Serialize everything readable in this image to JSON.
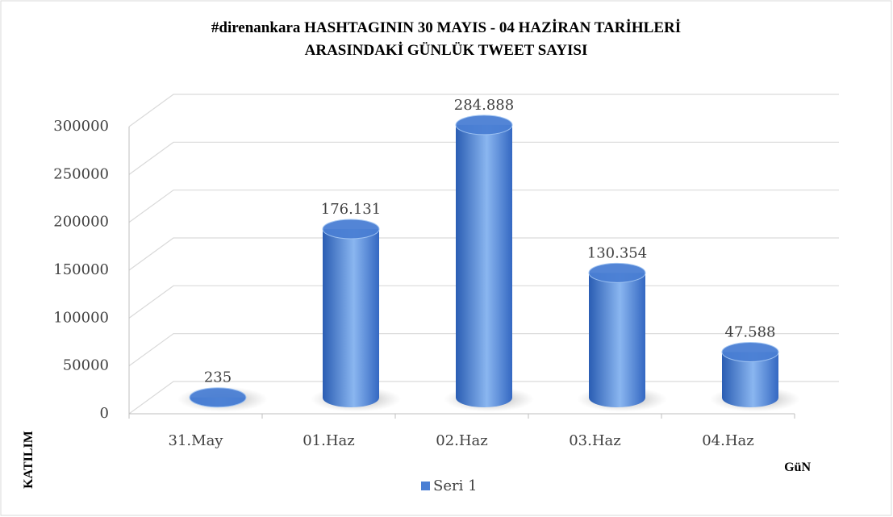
{
  "chart_data": {
    "type": "bar3d",
    "title": [
      "#direnankara HASHTAGININ 30 MAYIS - 04 HAZİRAN TARİHLERİ",
      "ARASINDAKİ GÜNLÜK TWEET SAYISI"
    ],
    "x_label": "GüN",
    "y_label": "KATILIM",
    "categories": [
      "31.May",
      "01.Haz",
      "02.Haz",
      "03.Haz",
      "04.Haz"
    ],
    "series": [
      {
        "name": "Seri 1",
        "color": "#4a7fd4",
        "values": [
          235,
          176131,
          284888,
          130354,
          47588
        ],
        "value_labels": [
          "235",
          "176.131",
          "284.888",
          "130.354",
          "47.588"
        ]
      }
    ],
    "ylim": [
      0,
      300000
    ],
    "yticks": [
      0,
      50000,
      100000,
      150000,
      200000,
      250000,
      300000
    ],
    "grid": true,
    "legend": "bottom"
  }
}
